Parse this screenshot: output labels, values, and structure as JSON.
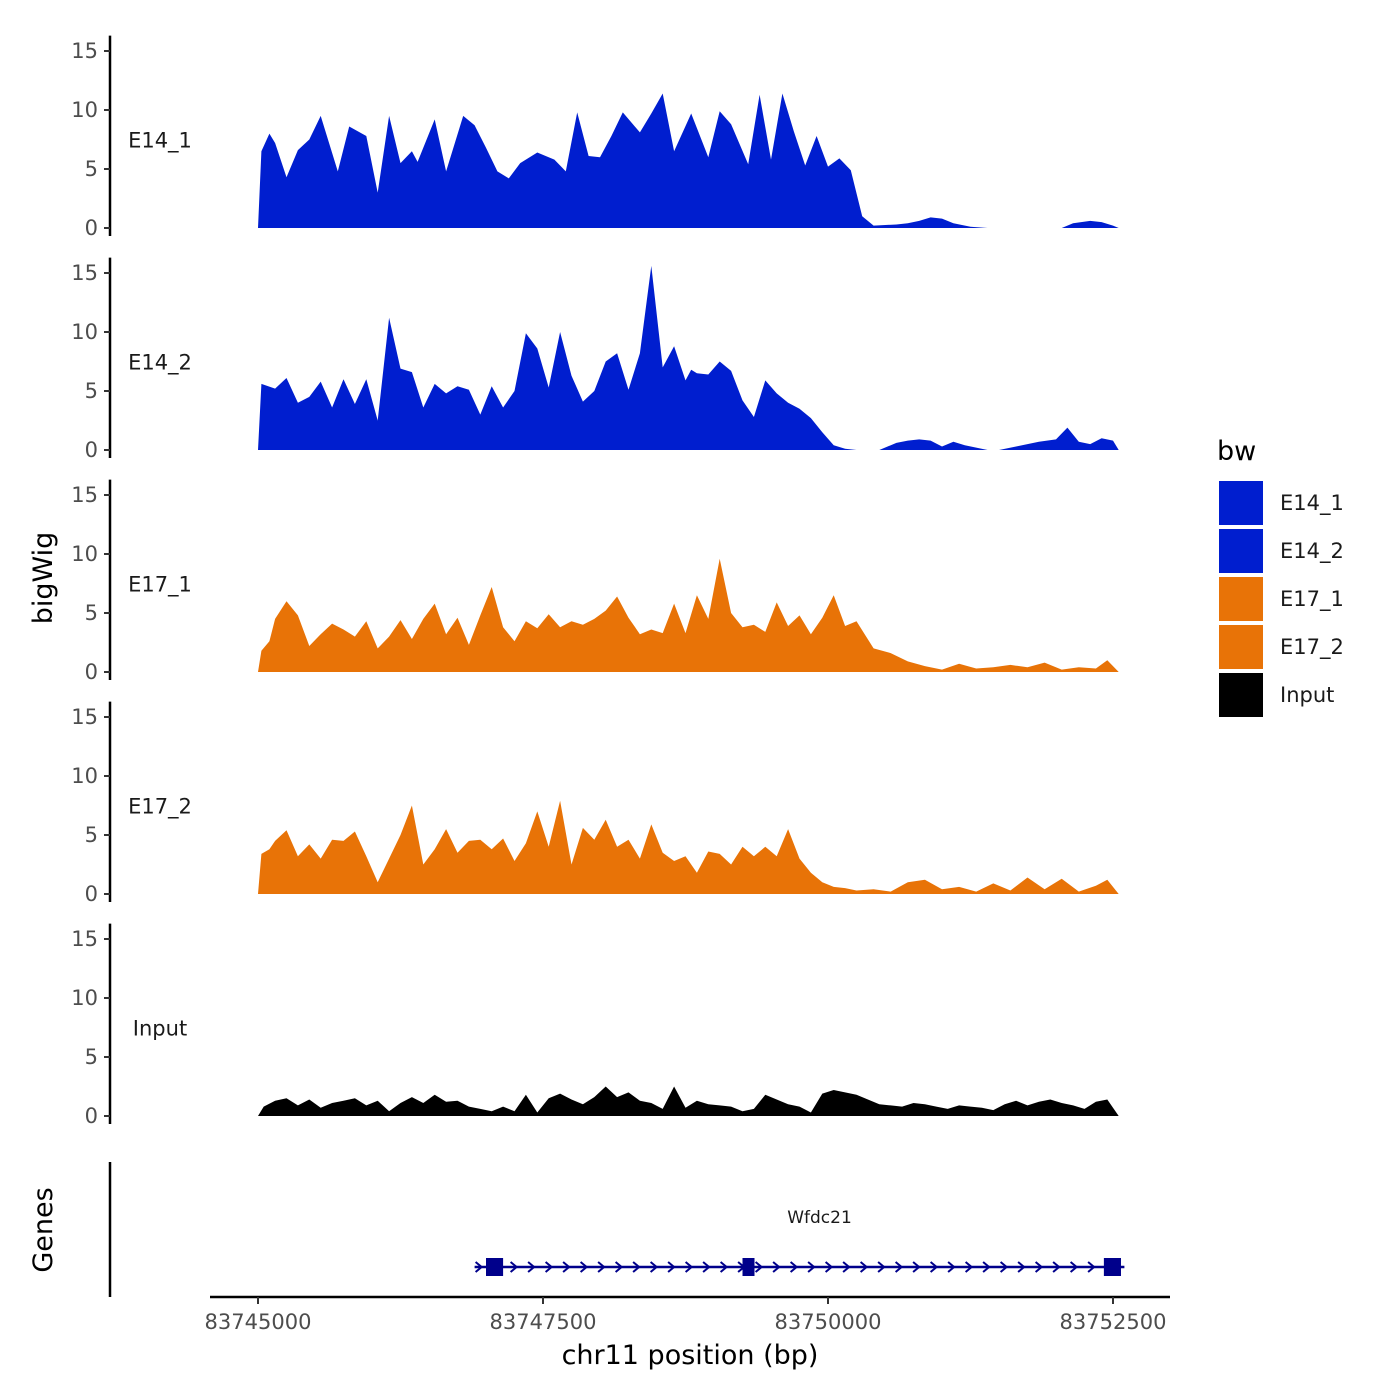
{
  "chart_data": {
    "type": "area",
    "xlabel": "chr11 position (bp)",
    "ylabel": "bigWig",
    "genes_axis_title": "Genes",
    "xlim": [
      83744550,
      83752800
    ],
    "x_ticks": [
      83745000,
      83747500,
      83750000,
      83752500
    ],
    "x_tick_labels": [
      "83745000",
      "83747500",
      "83750000",
      "83752500"
    ],
    "ylim": [
      0,
      16
    ],
    "y_ticks": [
      0,
      5,
      10,
      15
    ],
    "y_tick_labels": [
      "0",
      "5",
      "10",
      "15"
    ],
    "legend": {
      "title": "bw",
      "position": "right",
      "entries": [
        {
          "label": "E14_1",
          "color": "#001ECF"
        },
        {
          "label": "E14_2",
          "color": "#001ECF"
        },
        {
          "label": "E17_1",
          "color": "#E87307"
        },
        {
          "label": "E17_2",
          "color": "#E87307"
        },
        {
          "label": "Input",
          "color": "#000000"
        }
      ]
    },
    "series": [
      {
        "name": "E14_1",
        "color": "#001ECF",
        "x": [
          83745000,
          83745030,
          83745100,
          83745150,
          83745250,
          83745350,
          83745450,
          83745550,
          83745700,
          83745800,
          83745950,
          83746050,
          83746150,
          83746250,
          83746350,
          83746400,
          83746550,
          83746650,
          83746800,
          83746900,
          83747000,
          83747100,
          83747200,
          83747300,
          83747450,
          83747600,
          83747700,
          83747800,
          83747900,
          83748000,
          83748100,
          83748200,
          83748350,
          83748450,
          83748550,
          83748650,
          83748800,
          83748950,
          83749050,
          83749150,
          83749300,
          83749400,
          83749500,
          83749600,
          83749700,
          83749800,
          83749900,
          83750000,
          83750100,
          83750200,
          83750300,
          83750400,
          83750600,
          83750700,
          83750800,
          83750900,
          83751000,
          83751100,
          83751250,
          83751400,
          83751550,
          83751650,
          83752050,
          83752150,
          83752300,
          83752400,
          83752500,
          83752550
        ],
        "y": [
          0,
          6.5,
          8.0,
          7.2,
          4.3,
          6.6,
          7.5,
          9.5,
          4.8,
          8.6,
          7.8,
          3.0,
          9.5,
          5.5,
          6.5,
          5.6,
          9.2,
          4.8,
          9.5,
          8.7,
          6.8,
          4.8,
          4.2,
          5.5,
          6.4,
          5.8,
          4.8,
          9.8,
          6.1,
          6.0,
          7.8,
          9.8,
          8.1,
          9.7,
          11.4,
          6.5,
          9.7,
          6.0,
          9.9,
          8.8,
          5.4,
          11.3,
          5.8,
          11.4,
          8.2,
          5.3,
          7.8,
          5.2,
          5.9,
          4.9,
          1.0,
          0.2,
          0.3,
          0.4,
          0.6,
          0.9,
          0.8,
          0.4,
          0.1,
          0,
          0,
          0,
          0,
          0.4,
          0.6,
          0.5,
          0.2,
          0
        ]
      },
      {
        "name": "E14_2",
        "color": "#001ECF",
        "x": [
          83745000,
          83745030,
          83745150,
          83745250,
          83745350,
          83745450,
          83745550,
          83745650,
          83745750,
          83745850,
          83745950,
          83746050,
          83746150,
          83746250,
          83746350,
          83746450,
          83746550,
          83746650,
          83746750,
          83746850,
          83746950,
          83747050,
          83747150,
          83747250,
          83747350,
          83747450,
          83747550,
          83747650,
          83747750,
          83747850,
          83747950,
          83748050,
          83748150,
          83748250,
          83748350,
          83748450,
          83748550,
          83748650,
          83748750,
          83748800,
          83748850,
          83748950,
          83749050,
          83749150,
          83749250,
          83749350,
          83749450,
          83749550,
          83749650,
          83749750,
          83749850,
          83749950,
          83750050,
          83750150,
          83750250,
          83750350,
          83750450,
          83750600,
          83750700,
          83750800,
          83750900,
          83751000,
          83751100,
          83751200,
          83751300,
          83751400,
          83751500,
          83751650,
          83751750,
          83751850,
          83752000,
          83752100,
          83752200,
          83752300,
          83752400,
          83752500,
          83752550
        ],
        "y": [
          0,
          5.6,
          5.2,
          6.1,
          4.0,
          4.5,
          5.8,
          3.6,
          6.0,
          3.9,
          6.0,
          2.5,
          11.2,
          6.9,
          6.6,
          3.6,
          5.6,
          4.8,
          5.4,
          5.1,
          3.0,
          5.4,
          3.6,
          5.0,
          9.9,
          8.6,
          5.3,
          10.0,
          6.3,
          4.1,
          5.0,
          7.5,
          8.2,
          5.1,
          8.2,
          15.6,
          7.0,
          8.8,
          5.9,
          6.8,
          6.5,
          6.4,
          7.5,
          6.7,
          4.2,
          2.8,
          5.9,
          4.8,
          4.0,
          3.5,
          2.7,
          1.5,
          0.4,
          0.1,
          0,
          0,
          0,
          0.6,
          0.8,
          0.9,
          0.8,
          0.3,
          0.7,
          0.4,
          0.2,
          0,
          0,
          0.3,
          0.5,
          0.7,
          0.9,
          1.9,
          0.7,
          0.5,
          1.0,
          0.8,
          0
        ]
      },
      {
        "name": "E17_1",
        "color": "#E87307",
        "x": [
          83745000,
          83745030,
          83745100,
          83745150,
          83745250,
          83745350,
          83745450,
          83745550,
          83745650,
          83745750,
          83745850,
          83745950,
          83746050,
          83746150,
          83746250,
          83746350,
          83746450,
          83746550,
          83746650,
          83746750,
          83746850,
          83746950,
          83747050,
          83747150,
          83747250,
          83747350,
          83747450,
          83747550,
          83747650,
          83747750,
          83747850,
          83747950,
          83748050,
          83748150,
          83748250,
          83748350,
          83748450,
          83748550,
          83748650,
          83748750,
          83748850,
          83748950,
          83749050,
          83749150,
          83749250,
          83749350,
          83749450,
          83749550,
          83749650,
          83749750,
          83749850,
          83749950,
          83750050,
          83750150,
          83750250,
          83750400,
          83750550,
          83750700,
          83750850,
          83751000,
          83751150,
          83751300,
          83751450,
          83751600,
          83751750,
          83751900,
          83752050,
          83752200,
          83752350,
          83752450,
          83752550
        ],
        "y": [
          0,
          1.8,
          2.6,
          4.5,
          6.0,
          4.8,
          2.2,
          3.2,
          4.1,
          3.6,
          3.0,
          4.3,
          2.0,
          3.0,
          4.4,
          2.8,
          4.5,
          5.8,
          3.2,
          4.6,
          2.3,
          4.8,
          7.2,
          3.8,
          2.6,
          4.3,
          3.7,
          4.9,
          3.8,
          4.3,
          4.0,
          4.5,
          5.2,
          6.4,
          4.6,
          3.2,
          3.6,
          3.3,
          5.8,
          3.3,
          6.5,
          4.5,
          9.6,
          5.0,
          3.8,
          4.0,
          3.4,
          5.9,
          3.9,
          4.8,
          3.2,
          4.6,
          6.5,
          3.9,
          4.3,
          2.0,
          1.6,
          0.9,
          0.5,
          0.2,
          0.7,
          0.3,
          0.4,
          0.6,
          0.4,
          0.8,
          0.2,
          0.4,
          0.3,
          1.0,
          0
        ]
      },
      {
        "name": "E17_2",
        "color": "#E87307",
        "x": [
          83745000,
          83745030,
          83745100,
          83745150,
          83745250,
          83745350,
          83745450,
          83745550,
          83745650,
          83745750,
          83745850,
          83745950,
          83746050,
          83746150,
          83746250,
          83746350,
          83746450,
          83746550,
          83746650,
          83746750,
          83746850,
          83746950,
          83747050,
          83747150,
          83747250,
          83747350,
          83747450,
          83747550,
          83747650,
          83747750,
          83747850,
          83747950,
          83748050,
          83748150,
          83748250,
          83748350,
          83748450,
          83748550,
          83748650,
          83748750,
          83748850,
          83748950,
          83749050,
          83749150,
          83749250,
          83749350,
          83749450,
          83749550,
          83749650,
          83749750,
          83749850,
          83749950,
          83750050,
          83750150,
          83750250,
          83750400,
          83750550,
          83750700,
          83750850,
          83751000,
          83751150,
          83751300,
          83751450,
          83751600,
          83751750,
          83751900,
          83752050,
          83752200,
          83752350,
          83752450,
          83752550
        ],
        "y": [
          0,
          3.4,
          3.8,
          4.5,
          5.4,
          3.2,
          4.2,
          3.0,
          4.6,
          4.5,
          5.3,
          3.2,
          1.0,
          3.0,
          5.0,
          7.5,
          2.5,
          3.8,
          5.5,
          3.5,
          4.5,
          4.6,
          3.8,
          4.7,
          2.8,
          4.3,
          7.0,
          4.0,
          7.9,
          2.5,
          5.6,
          4.6,
          6.3,
          4.0,
          4.6,
          3.0,
          5.9,
          3.5,
          2.8,
          3.2,
          1.8,
          3.6,
          3.4,
          2.5,
          4.0,
          3.2,
          4.0,
          3.2,
          5.5,
          3.0,
          1.8,
          1.0,
          0.6,
          0.5,
          0.3,
          0.4,
          0.2,
          1.0,
          1.2,
          0.4,
          0.6,
          0.2,
          0.9,
          0.3,
          1.4,
          0.4,
          1.3,
          0.2,
          0.7,
          1.2,
          0
        ]
      },
      {
        "name": "Input",
        "color": "#000000",
        "x": [
          83745000,
          83745050,
          83745150,
          83745250,
          83745350,
          83745450,
          83745550,
          83745650,
          83745750,
          83745850,
          83745950,
          83746050,
          83746150,
          83746250,
          83746350,
          83746450,
          83746550,
          83746650,
          83746750,
          83746850,
          83746950,
          83747050,
          83747150,
          83747250,
          83747350,
          83747450,
          83747550,
          83747650,
          83747750,
          83747850,
          83747950,
          83748050,
          83748150,
          83748250,
          83748350,
          83748450,
          83748550,
          83748650,
          83748750,
          83748850,
          83748950,
          83749050,
          83749150,
          83749250,
          83749350,
          83749450,
          83749550,
          83749650,
          83749750,
          83749850,
          83749950,
          83750050,
          83750150,
          83750250,
          83750350,
          83750450,
          83750550,
          83750650,
          83750750,
          83750850,
          83750950,
          83751050,
          83751150,
          83751250,
          83751350,
          83751450,
          83751550,
          83751650,
          83751750,
          83751850,
          83751950,
          83752050,
          83752150,
          83752250,
          83752350,
          83752450,
          83752550
        ],
        "y": [
          0,
          0.8,
          1.3,
          1.5,
          0.9,
          1.4,
          0.7,
          1.1,
          1.3,
          1.5,
          0.9,
          1.3,
          0.4,
          1.1,
          1.6,
          1.1,
          1.8,
          1.2,
          1.3,
          0.8,
          0.6,
          0.4,
          0.8,
          0.4,
          1.8,
          0.3,
          1.5,
          1.9,
          1.4,
          1.0,
          1.6,
          2.5,
          1.6,
          2.0,
          1.3,
          1.1,
          0.6,
          2.5,
          0.7,
          1.3,
          1.0,
          0.9,
          0.8,
          0.4,
          0.6,
          1.8,
          1.4,
          1.0,
          0.8,
          0.3,
          1.9,
          2.2,
          2.0,
          1.8,
          1.4,
          1.0,
          0.9,
          0.8,
          1.1,
          1.0,
          0.8,
          0.6,
          0.9,
          0.8,
          0.7,
          0.5,
          1.0,
          1.3,
          0.9,
          1.2,
          1.4,
          1.1,
          0.9,
          0.6,
          1.2,
          1.4,
          0
        ]
      }
    ],
    "genes": [
      {
        "name": "Wfdc21",
        "strand": "+",
        "color": "#00008B",
        "start": 83746900,
        "end": 83752600,
        "exons": [
          [
            83747000,
            83747150
          ],
          [
            83749250,
            83749330
          ],
          [
            83752420,
            83752570
          ]
        ]
      }
    ]
  }
}
